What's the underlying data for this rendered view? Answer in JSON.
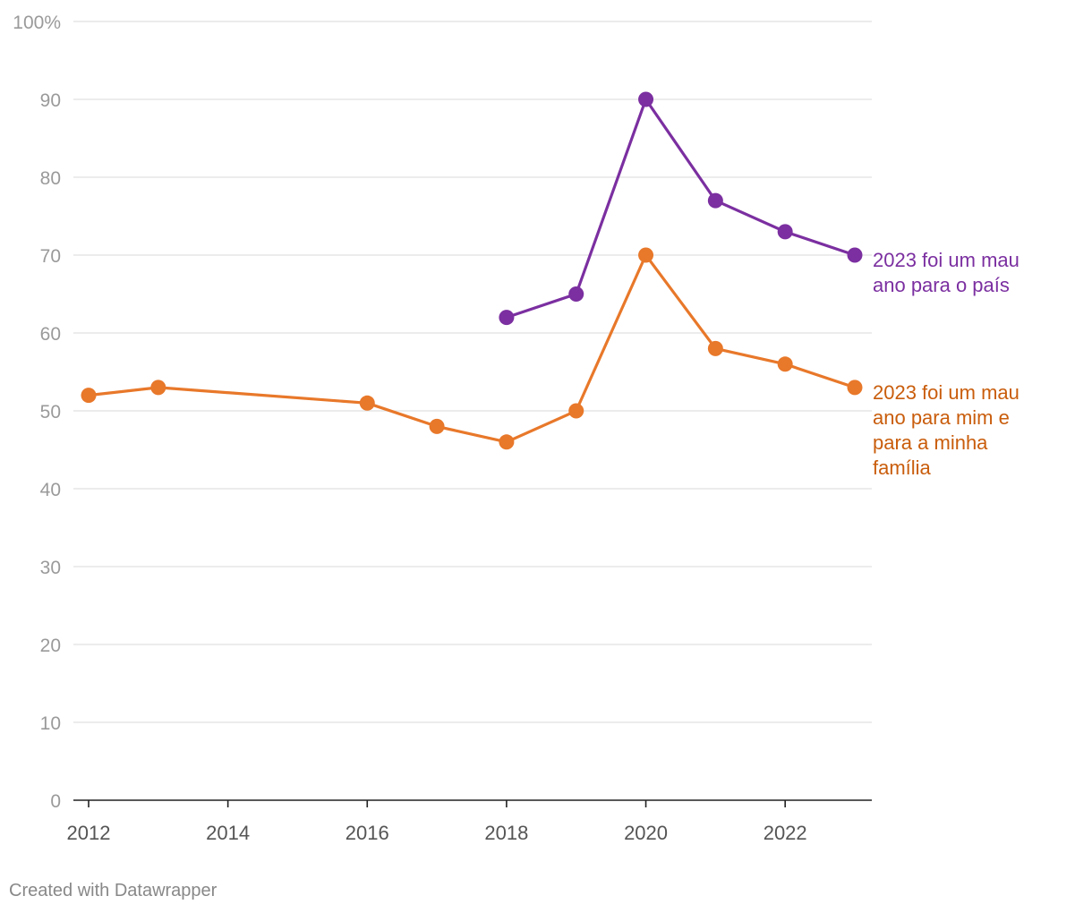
{
  "chart_data": {
    "type": "line",
    "title": "",
    "xlabel": "",
    "ylabel": "",
    "xlim": [
      2012,
      2023
    ],
    "ylim": [
      0,
      100
    ],
    "y_ticks": [
      {
        "value": 0,
        "label": "0"
      },
      {
        "value": 10,
        "label": "10"
      },
      {
        "value": 20,
        "label": "20"
      },
      {
        "value": 30,
        "label": "30"
      },
      {
        "value": 40,
        "label": "40"
      },
      {
        "value": 50,
        "label": "50"
      },
      {
        "value": 60,
        "label": "60"
      },
      {
        "value": 70,
        "label": "70"
      },
      {
        "value": 80,
        "label": "80"
      },
      {
        "value": 90,
        "label": "90"
      },
      {
        "value": 100,
        "label": "100%"
      }
    ],
    "x_ticks": [
      {
        "value": 2012,
        "label": "2012"
      },
      {
        "value": 2014,
        "label": "2014"
      },
      {
        "value": 2016,
        "label": "2016"
      },
      {
        "value": 2018,
        "label": "2018"
      },
      {
        "value": 2020,
        "label": "2020"
      },
      {
        "value": 2022,
        "label": "2022"
      }
    ],
    "grid": true,
    "series": [
      {
        "name": "pais",
        "label_lines": [
          "2023 foi um mau",
          "ano para o país"
        ],
        "color": "#7b2fa0",
        "label_color": "#7b2fa0",
        "x": [
          2018,
          2019,
          2020,
          2021,
          2022,
          2023
        ],
        "values": [
          62,
          65,
          90,
          77,
          73,
          70
        ]
      },
      {
        "name": "familia",
        "label_lines": [
          "2023 foi um mau",
          "ano para mim e",
          "para a minha",
          "família"
        ],
        "color": "#e8782a",
        "label_color": "#c95d0c",
        "x": [
          2012,
          2013,
          2016,
          2017,
          2018,
          2019,
          2020,
          2021,
          2022,
          2023
        ],
        "values": [
          52,
          53,
          51,
          48,
          46,
          50,
          70,
          58,
          56,
          53
        ]
      }
    ]
  },
  "footer": {
    "credit": "Created with Datawrapper"
  }
}
